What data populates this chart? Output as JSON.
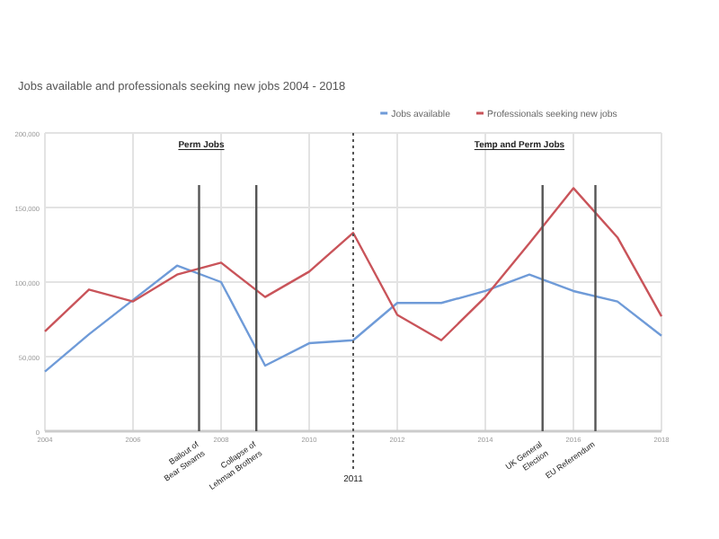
{
  "chart_data": {
    "type": "line",
    "title": "Jobs available and professionals seeking new jobs 2004 - 2018",
    "x": [
      2004,
      2005,
      2006,
      2007,
      2008,
      2009,
      2010,
      2011,
      2012,
      2013,
      2014,
      2015,
      2016,
      2017,
      2018
    ],
    "series": [
      {
        "name": "Jobs available",
        "color": "#6f9bd8",
        "values": [
          40000,
          65000,
          88000,
          111000,
          100000,
          44000,
          59000,
          61000,
          86000,
          86000,
          94000,
          105000,
          94000,
          87000,
          64000
        ]
      },
      {
        "name": "Professionals seeking new jobs",
        "color": "#c9545a",
        "values": [
          67000,
          95000,
          87000,
          105000,
          113000,
          90000,
          107000,
          133000,
          78000,
          61000,
          90000,
          126000,
          163000,
          130000,
          77000
        ]
      }
    ],
    "xlim": [
      2004,
      2018
    ],
    "xticks": [
      2004,
      2006,
      2008,
      2010,
      2012,
      2014,
      2016,
      2018
    ],
    "ylim": [
      0,
      200000
    ],
    "yticks": [
      {
        "value": 0,
        "label": "0"
      },
      {
        "value": 50000,
        "label": "50,000"
      },
      {
        "value": 100000,
        "label": "100,000"
      },
      {
        "value": 150000,
        "label": "150,000"
      },
      {
        "value": 200000,
        "label": "200,000"
      }
    ],
    "grid": true,
    "legend": "top right",
    "ref_lines": [
      {
        "axis": "x",
        "value": 2007.5,
        "label": "Bailout of Bear Stearns",
        "color": "#555555",
        "line_style": "solid"
      },
      {
        "axis": "x",
        "value": 2008.8,
        "label": "Collapse of Lehman Brothers",
        "color": "#555555",
        "line_style": "solid"
      },
      {
        "axis": "x",
        "value": 2011,
        "label": "2011",
        "color": "#555555",
        "line_style": "dotted"
      },
      {
        "axis": "x",
        "value": 2015.3,
        "label": "UK General Election",
        "color": "#555555",
        "line_style": "solid"
      },
      {
        "axis": "x",
        "value": 2016.5,
        "label": "EU Referendum",
        "color": "#555555",
        "line_style": "solid"
      }
    ],
    "annotations": [
      "Perm Jobs",
      "Temp and Perm Jobs"
    ]
  }
}
